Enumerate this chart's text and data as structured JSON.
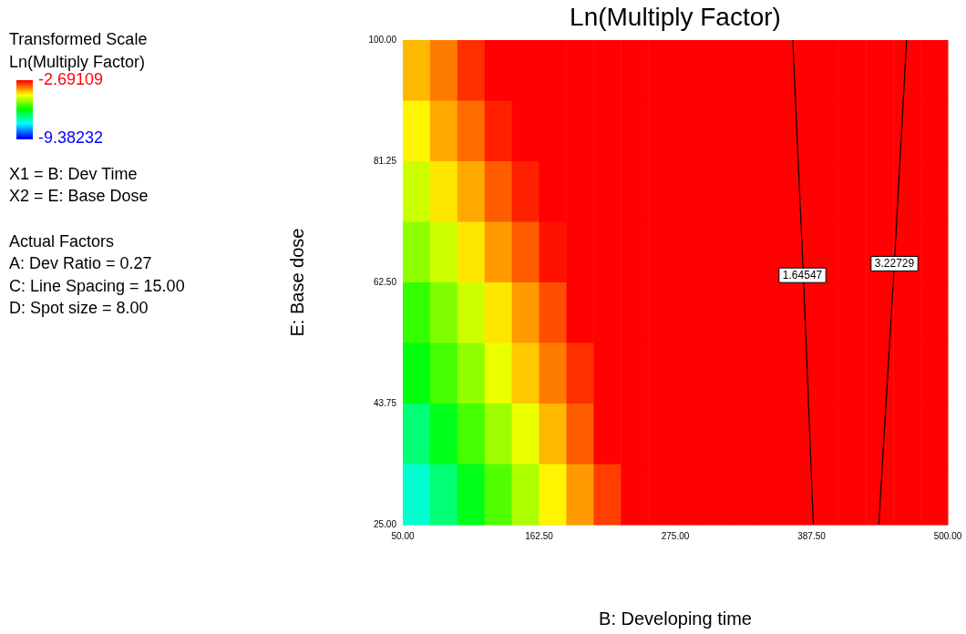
{
  "chart_data": {
    "type": "heatmap",
    "title": "Ln(Multiply Factor)",
    "xlabel": "B: Developing time",
    "ylabel": "E: Base dose",
    "legend_title": "Transformed Scale",
    "clabel": "Ln(Multiply Factor)",
    "clim": [
      -9.38232,
      -2.69109
    ],
    "cticks": [
      -2.69109,
      -9.38232
    ],
    "xlim": [
      50,
      500
    ],
    "ylim": [
      25,
      100
    ],
    "xticks": [
      {
        "value": 50,
        "label": "50.00"
      },
      {
        "value": 162.5,
        "label": "162.50"
      },
      {
        "value": 275,
        "label": "275.00"
      },
      {
        "value": 387.5,
        "label": "387.50"
      },
      {
        "value": 500,
        "label": "500.00"
      }
    ],
    "yticks": [
      {
        "value": 25,
        "label": "25.00"
      },
      {
        "value": 43.75,
        "label": "43.75"
      },
      {
        "value": 62.5,
        "label": "62.50"
      },
      {
        "value": 81.25,
        "label": "81.25"
      },
      {
        "value": 100,
        "label": "100.00"
      }
    ],
    "cells": [
      [
        -3.9,
        -3.5,
        -3.0,
        -2.7,
        -2.7,
        -2.7,
        -2.7,
        -2.7,
        -2.7,
        -2.7,
        -2.7,
        -2.7,
        -2.7,
        -2.7,
        -2.7,
        -2.7,
        -2.7,
        -2.7,
        -2.7,
        -2.7
      ],
      [
        -4.3,
        -3.8,
        -3.4,
        -2.9,
        -2.7,
        -2.7,
        -2.7,
        -2.7,
        -2.7,
        -2.7,
        -2.7,
        -2.7,
        -2.7,
        -2.7,
        -2.7,
        -2.7,
        -2.7,
        -2.7,
        -2.7,
        -2.7
      ],
      [
        -4.7,
        -4.2,
        -3.8,
        -3.3,
        -2.9,
        -2.7,
        -2.7,
        -2.7,
        -2.7,
        -2.7,
        -2.7,
        -2.7,
        -2.7,
        -2.7,
        -2.7,
        -2.7,
        -2.7,
        -2.7,
        -2.7,
        -2.7
      ],
      [
        -5.1,
        -4.7,
        -4.2,
        -3.7,
        -3.3,
        -2.8,
        -2.7,
        -2.7,
        -2.7,
        -2.7,
        -2.7,
        -2.7,
        -2.7,
        -2.7,
        -2.7,
        -2.7,
        -2.7,
        -2.7,
        -2.7,
        -2.7
      ],
      [
        -5.7,
        -5.2,
        -4.7,
        -4.2,
        -3.7,
        -3.2,
        -2.7,
        -2.7,
        -2.7,
        -2.7,
        -2.7,
        -2.7,
        -2.7,
        -2.7,
        -2.7,
        -2.7,
        -2.7,
        -2.7,
        -2.7,
        -2.7
      ],
      [
        -6.1,
        -5.6,
        -5.1,
        -4.5,
        -4.0,
        -3.5,
        -3.0,
        -2.7,
        -2.7,
        -2.7,
        -2.7,
        -2.7,
        -2.7,
        -2.7,
        -2.7,
        -2.7,
        -2.7,
        -2.7,
        -2.7,
        -2.7
      ],
      [
        -6.8,
        -6.2,
        -5.6,
        -5.0,
        -4.5,
        -3.9,
        -3.3,
        -2.7,
        -2.7,
        -2.7,
        -2.7,
        -2.7,
        -2.7,
        -2.7,
        -2.7,
        -2.7,
        -2.7,
        -2.7,
        -2.7,
        -2.7
      ],
      [
        -7.4,
        -6.8,
        -6.2,
        -5.5,
        -4.9,
        -4.3,
        -3.7,
        -3.1,
        -2.7,
        -2.7,
        -2.7,
        -2.7,
        -2.7,
        -2.7,
        -2.7,
        -2.7,
        -2.7,
        -2.7,
        -2.7,
        -2.7
      ]
    ],
    "series": [
      {
        "type": "line",
        "color": "#000000",
        "x": [
          389,
          381,
          372
        ],
        "values": [
          25,
          62.5,
          100
        ]
      },
      {
        "type": "line",
        "color": "#000000",
        "x": [
          443,
          455,
          466
        ],
        "values": [
          25,
          62.5,
          100
        ]
      }
    ],
    "annotations": [
      {
        "text": "1.64547",
        "x": 380,
        "y": 63.6
      },
      {
        "text": "3.22729",
        "x": 456,
        "y": 65.4
      },
      "X1 = B: Dev Time",
      "X2 = E: Base Dose",
      "Actual Factors",
      "A: Dev Ratio = 0.27",
      "C: Line Spacing = 15.00",
      "D: Spot size = 8.00"
    ],
    "grid": false
  }
}
